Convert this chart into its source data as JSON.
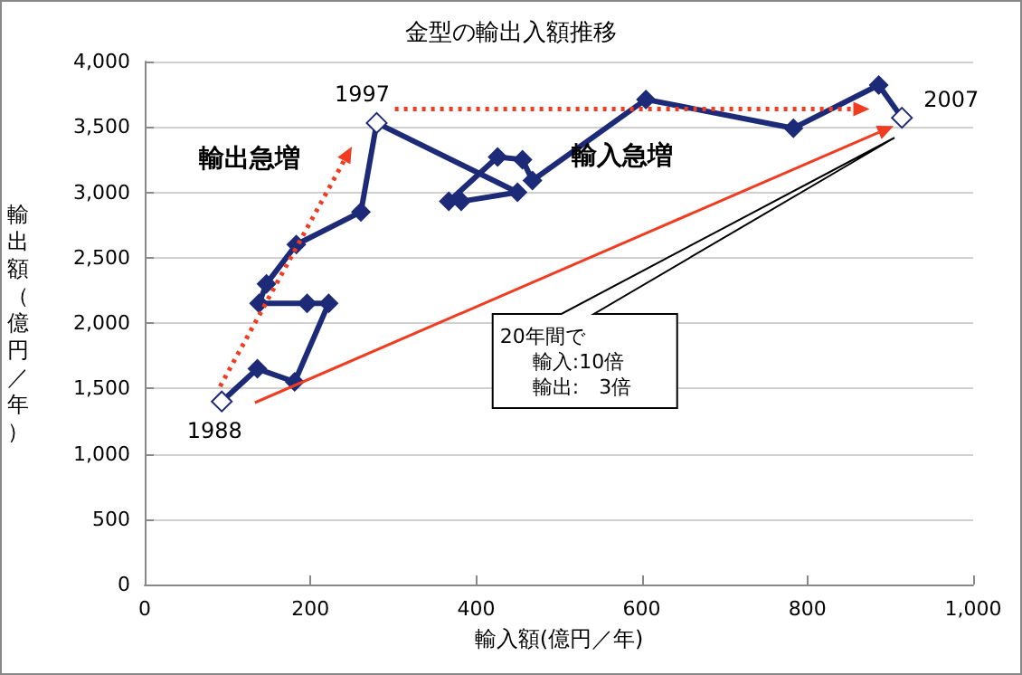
{
  "chart_data": {
    "type": "line",
    "title": "金型の輸出入額推移",
    "xlabel": "輸入額(億円／年)",
    "ylabel": "輸出額（億円／年）",
    "x": [
      93,
      136,
      181,
      222,
      196,
      138,
      147,
      183,
      261,
      280,
      450,
      382,
      367,
      426,
      456,
      468,
      605,
      783,
      886,
      914
    ],
    "series": [
      {
        "color": "#1c2a78",
        "values": [
          1400,
          1650,
          1550,
          2150,
          2150,
          2150,
          2300,
          2600,
          2850,
          3530,
          3000,
          2930,
          2930,
          3270,
          3250,
          3090,
          3710,
          3490,
          3820,
          3570
        ]
      }
    ],
    "xlim": [
      0,
      1000
    ],
    "xticks": [
      0,
      200,
      400,
      600,
      800,
      {
        "value": 1000,
        "label": "1,000"
      }
    ],
    "ylim": [
      0,
      4000
    ],
    "yticks": [
      0,
      500,
      {
        "value": 1000,
        "label": "1,000"
      },
      {
        "value": 1500,
        "label": "1,500"
      },
      {
        "value": 2000,
        "label": "2,000"
      },
      {
        "value": 2500,
        "label": "2,500"
      },
      {
        "value": 3000,
        "label": "3,000"
      },
      {
        "value": 3500,
        "label": "3,500"
      },
      {
        "value": 4000,
        "label": "4,000"
      }
    ],
    "grid": "y",
    "marker": "diamond",
    "line_style": "solid",
    "annotations": [
      {
        "text": "1988",
        "x": 93,
        "y": 1400
      },
      {
        "text": "1997",
        "x": 280,
        "y": 3530
      },
      {
        "text": "2007",
        "x": 914,
        "y": 3570
      },
      "輸出急増",
      "輸入急増",
      "20年間で",
      "輸入:10倍",
      "輸出:　3倍"
    ]
  }
}
